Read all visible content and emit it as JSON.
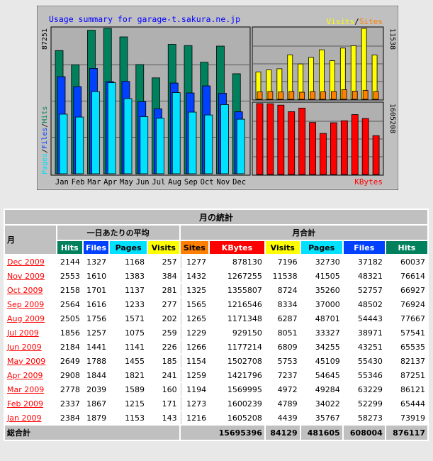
{
  "chart_data": {
    "type": "bar",
    "title": "Usage summary for garage-t.sakura.ne.jp",
    "categories": [
      "Jan",
      "Feb",
      "Mar",
      "Apr",
      "May",
      "Jun",
      "Jul",
      "Aug",
      "Sep",
      "Oct",
      "Nov",
      "Dec"
    ],
    "left_axis_max": "87251",
    "right_top_max": "11538",
    "right_bottom_max": "1605208",
    "legend_left": {
      "pages": "Pages",
      "files": "Files",
      "hits": "Hits"
    },
    "legend_top": {
      "visits": "Visits",
      "sites": "Sites"
    },
    "legend_bottom": {
      "kbytes": "KBytes"
    },
    "series": [
      {
        "name": "Hits",
        "values": [
          73919,
          65444,
          86121,
          87251,
          82137,
          65535,
          57541,
          77667,
          76924,
          66927,
          76614,
          60037
        ]
      },
      {
        "name": "Files",
        "values": [
          58273,
          52299,
          63229,
          55346,
          55430,
          43251,
          38971,
          54443,
          48502,
          52757,
          48321,
          37182
        ]
      },
      {
        "name": "Pages",
        "values": [
          35767,
          34022,
          49284,
          54645,
          45109,
          34255,
          33327,
          48701,
          37000,
          35260,
          41505,
          32730
        ]
      },
      {
        "name": "Visits",
        "values": [
          4439,
          4789,
          4972,
          7237,
          5753,
          6809,
          8051,
          6287,
          8334,
          8724,
          11538,
          7196
        ]
      },
      {
        "name": "Sites",
        "values": [
          1216,
          1273,
          1194,
          1259,
          1154,
          1266,
          1229,
          1265,
          1565,
          1325,
          1432,
          1277
        ]
      },
      {
        "name": "KBytes",
        "values": [
          1605208,
          1600239,
          1569995,
          1421796,
          1502708,
          1177214,
          929150,
          1171348,
          1216546,
          1355807,
          1267255,
          878130
        ]
      }
    ]
  },
  "colors": {
    "hits": "#00805c",
    "files": "#0040ff",
    "pages": "#00e0ff",
    "visits": "#ffff00",
    "sites": "#ff8000",
    "kbytes": "#ff0000",
    "title": "#0000ff",
    "graph_bg": "#c0c0c0",
    "plot_bg": "#b0b0b0"
  },
  "table": {
    "caption": "月の統計",
    "month_header": "月",
    "daily_avg_header": "一日あたりの平均",
    "monthly_total_header": "月合計",
    "columns": [
      "Hits",
      "Files",
      "Pages",
      "Visits",
      "Sites",
      "KBytes",
      "Visits",
      "Pages",
      "Files",
      "Hits"
    ],
    "rows": [
      {
        "month": "Dec 2009",
        "values": [
          "2144",
          "1327",
          "1168",
          "257",
          "1277",
          "878130",
          "7196",
          "32730",
          "37182",
          "60037"
        ]
      },
      {
        "month": "Nov 2009",
        "values": [
          "2553",
          "1610",
          "1383",
          "384",
          "1432",
          "1267255",
          "11538",
          "41505",
          "48321",
          "76614"
        ]
      },
      {
        "month": "Oct 2009",
        "values": [
          "2158",
          "1701",
          "1137",
          "281",
          "1325",
          "1355807",
          "8724",
          "35260",
          "52757",
          "66927"
        ]
      },
      {
        "month": "Sep 2009",
        "values": [
          "2564",
          "1616",
          "1233",
          "277",
          "1565",
          "1216546",
          "8334",
          "37000",
          "48502",
          "76924"
        ]
      },
      {
        "month": "Aug 2009",
        "values": [
          "2505",
          "1756",
          "1571",
          "202",
          "1265",
          "1171348",
          "6287",
          "48701",
          "54443",
          "77667"
        ]
      },
      {
        "month": "Jul 2009",
        "values": [
          "1856",
          "1257",
          "1075",
          "259",
          "1229",
          "929150",
          "8051",
          "33327",
          "38971",
          "57541"
        ]
      },
      {
        "month": "Jun 2009",
        "values": [
          "2184",
          "1441",
          "1141",
          "226",
          "1266",
          "1177214",
          "6809",
          "34255",
          "43251",
          "65535"
        ]
      },
      {
        "month": "May 2009",
        "values": [
          "2649",
          "1788",
          "1455",
          "185",
          "1154",
          "1502708",
          "5753",
          "45109",
          "55430",
          "82137"
        ]
      },
      {
        "month": "Apr 2009",
        "values": [
          "2908",
          "1844",
          "1821",
          "241",
          "1259",
          "1421796",
          "7237",
          "54645",
          "55346",
          "87251"
        ]
      },
      {
        "month": "Mar 2009",
        "values": [
          "2778",
          "2039",
          "1589",
          "160",
          "1194",
          "1569995",
          "4972",
          "49284",
          "63229",
          "86121"
        ]
      },
      {
        "month": "Feb 2009",
        "values": [
          "2337",
          "1867",
          "1215",
          "171",
          "1273",
          "1600239",
          "4789",
          "34022",
          "52299",
          "65444"
        ]
      },
      {
        "month": "Jan 2009",
        "values": [
          "2384",
          "1879",
          "1153",
          "143",
          "1216",
          "1605208",
          "4439",
          "35767",
          "58273",
          "73919"
        ]
      }
    ],
    "total_label": "総合計",
    "totals": [
      "15695396",
      "84129",
      "481605",
      "608004",
      "876117"
    ]
  }
}
